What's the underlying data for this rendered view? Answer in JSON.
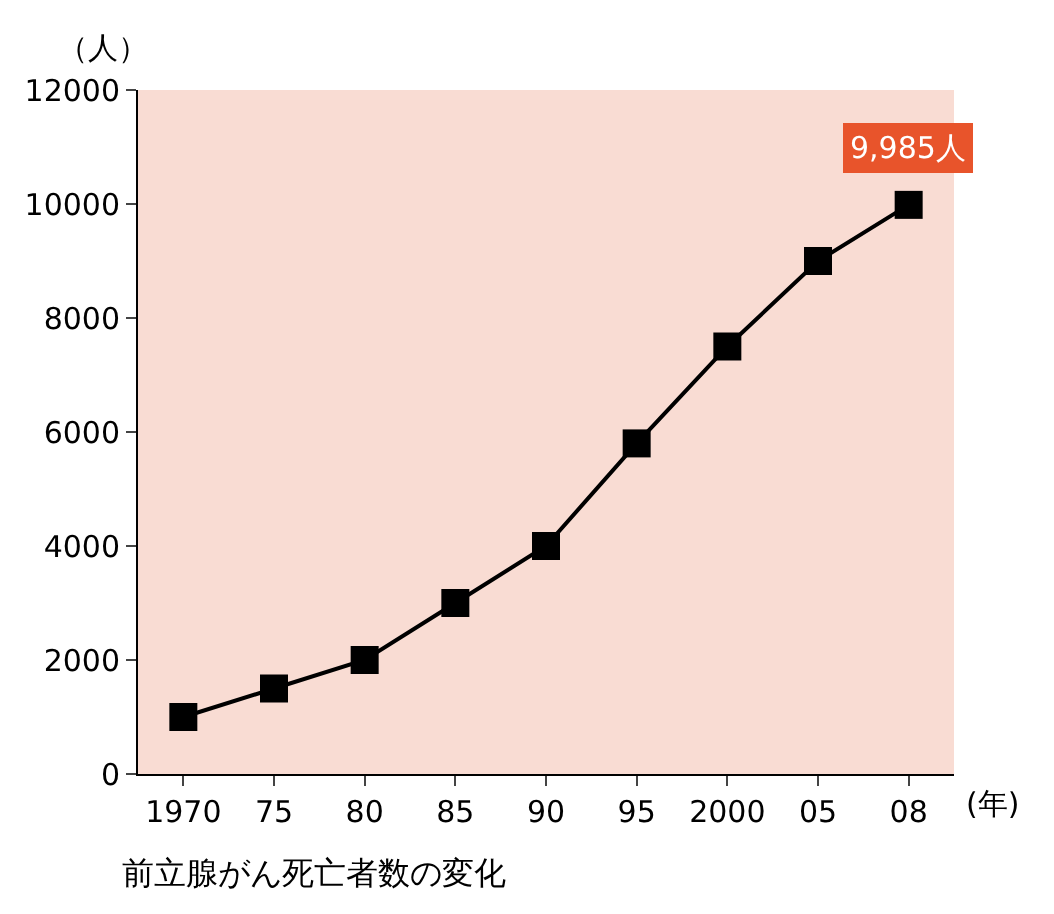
{
  "chart_data": {
    "type": "line",
    "categories": [
      "1970",
      "75",
      "80",
      "85",
      "90",
      "95",
      "2000",
      "05",
      "08"
    ],
    "series": [
      {
        "color": "#000000",
        "values": [
          1000,
          1500,
          2000,
          3000,
          4000,
          5800,
          7500,
          9000,
          9985
        ]
      }
    ],
    "value_labels": [
      null,
      null,
      null,
      null,
      null,
      null,
      null,
      null,
      "9,985人"
    ],
    "xlabel": "(年)",
    "ylabel": "（人）",
    "ylim": [
      0,
      12000
    ],
    "yticks": [
      0,
      2000,
      4000,
      6000,
      8000,
      10000,
      12000
    ],
    "grid": false,
    "legend": false,
    "marker": "square",
    "line_style": "solid",
    "annotations": [
      "前立腺がん死亡者数の変化"
    ]
  }
}
